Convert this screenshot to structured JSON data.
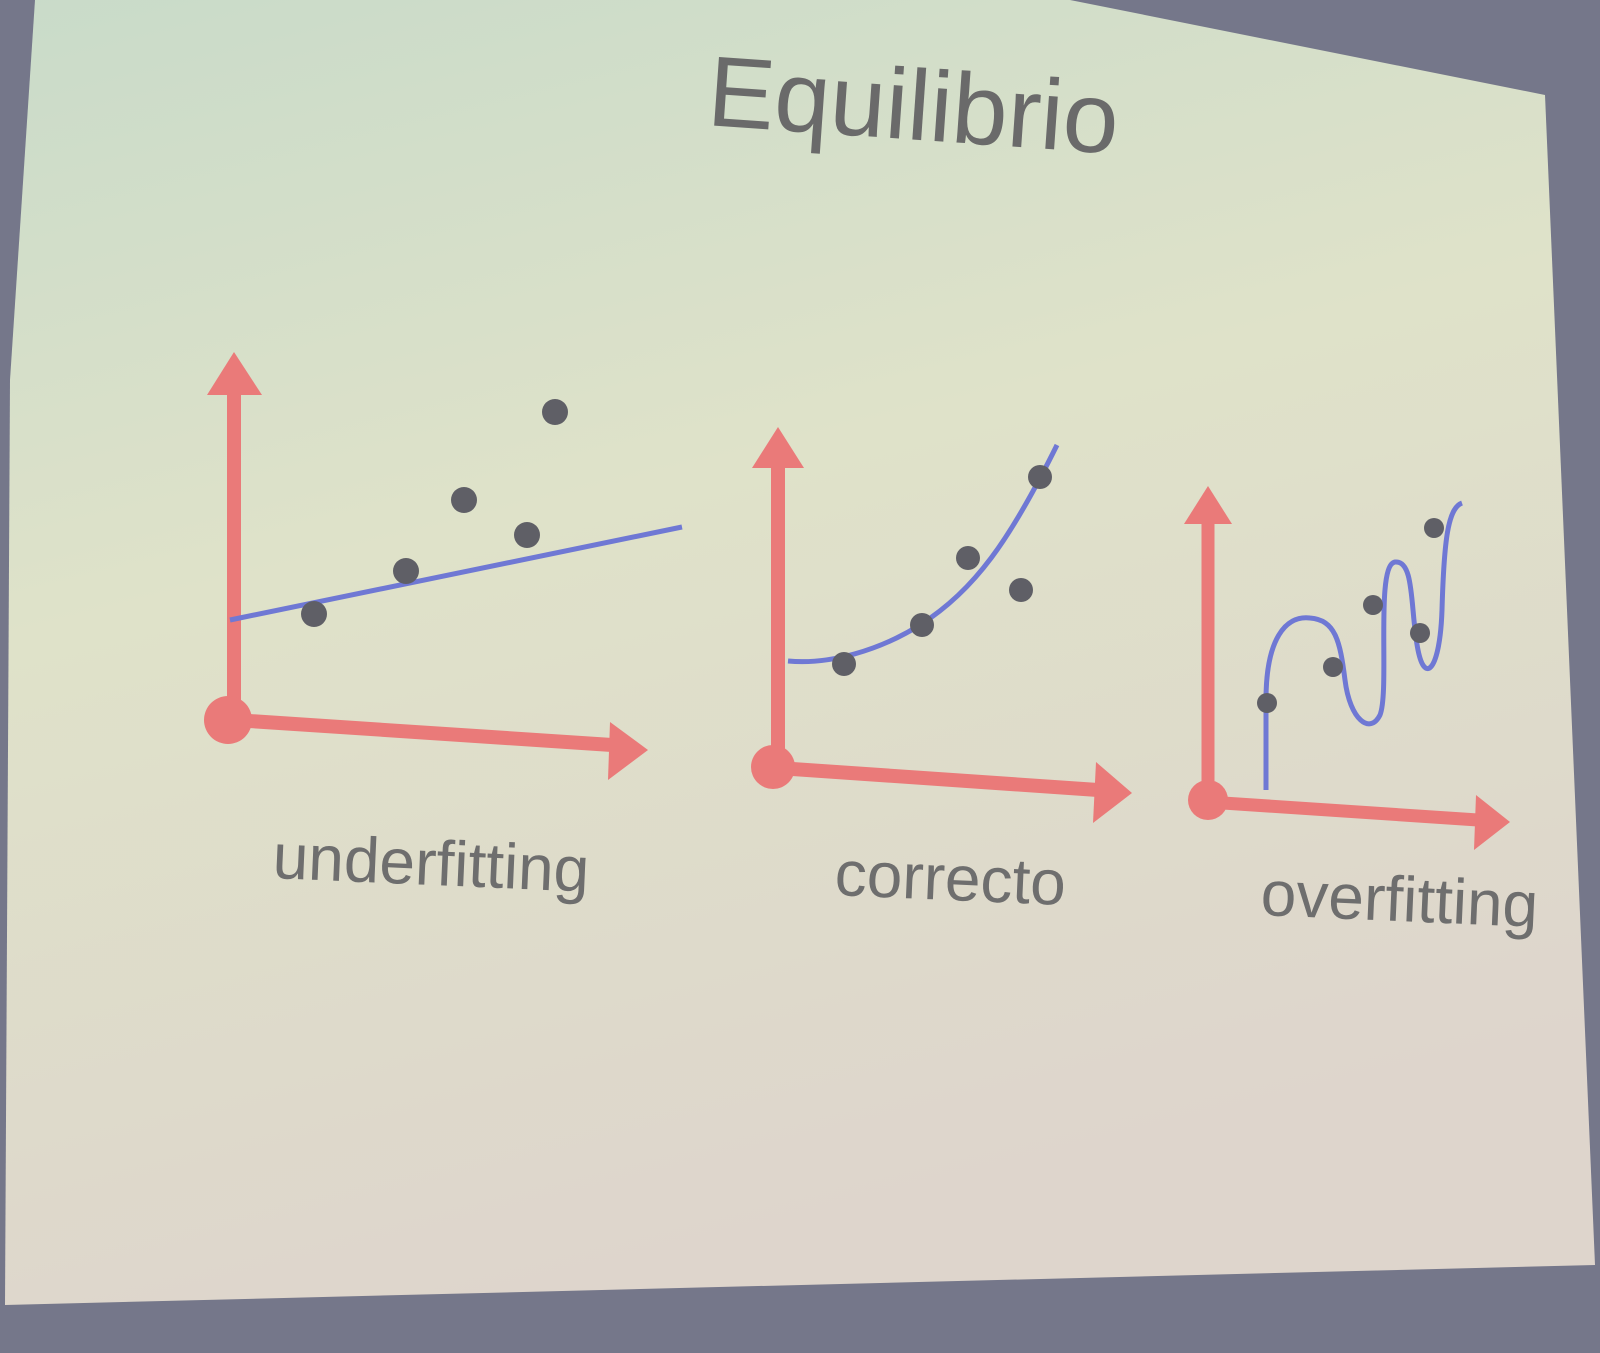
{
  "slide": {
    "title": "Equilibrio",
    "background_colors": [
      "#c9dbc9",
      "#dedfc8",
      "#ded6cc"
    ],
    "projector_surround_color": "#75778a"
  },
  "diagrams": [
    {
      "id": "underfitting",
      "label": "underfitting",
      "fit": "straight line"
    },
    {
      "id": "correcto",
      "label": "correcto",
      "fit": "smooth curve"
    },
    {
      "id": "overfitting",
      "label": "overfitting",
      "fit": "wiggly curve through every point"
    }
  ],
  "colors": {
    "axis": "#ea7a79",
    "fit_line": "#6f78d4",
    "data_point": "#5f5f66",
    "text": "#6a6a6a"
  }
}
